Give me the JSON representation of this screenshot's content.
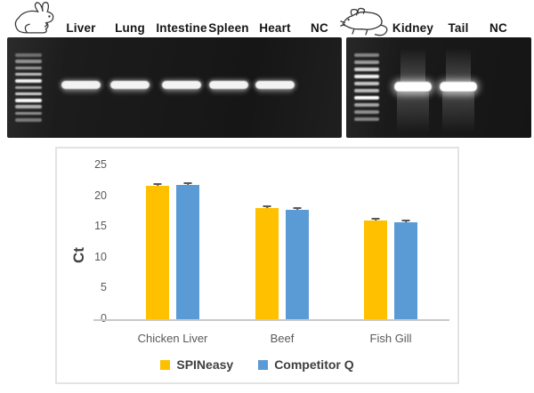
{
  "figure": {
    "gels": [
      {
        "animal": "rabbit",
        "lanes": [
          {
            "label": "Liver",
            "band": true,
            "smear": false
          },
          {
            "label": "Lung",
            "band": true,
            "smear": false
          },
          {
            "label": "Intestine",
            "band": true,
            "smear": false
          },
          {
            "label": "Spleen",
            "band": true,
            "smear": false
          },
          {
            "label": "Heart",
            "band": true,
            "smear": false
          },
          {
            "label": "NC",
            "band": false,
            "smear": false
          }
        ],
        "ladder_intensities": [
          0.35,
          0.5,
          0.55,
          0.72,
          0.95,
          0.6,
          0.8,
          1.0,
          0.65,
          0.5,
          0.4
        ]
      },
      {
        "animal": "rat",
        "lanes": [
          {
            "label": "Kidney",
            "band": true,
            "smear": true
          },
          {
            "label": "Tail",
            "band": true,
            "smear": true
          },
          {
            "label": "NC",
            "band": false,
            "smear": false
          }
        ],
        "ladder_intensities": [
          0.45,
          0.55,
          0.8,
          0.95,
          0.75,
          0.7,
          1.0,
          0.6,
          0.5,
          0.45
        ]
      }
    ],
    "chart_data": {
      "type": "bar",
      "title": "",
      "xlabel": "",
      "ylabel": "Ct",
      "categories": [
        "Chicken Liver",
        "Beef",
        "Fish Gill"
      ],
      "series": [
        {
          "name": "SPINeasy",
          "color": "#FFC000",
          "values": [
            21.7,
            18.0,
            16.0
          ],
          "errors": [
            0.3,
            0.2,
            0.2
          ]
        },
        {
          "name": "Competitor Q",
          "color": "#5B9BD5",
          "values": [
            21.8,
            17.8,
            15.7
          ],
          "errors": [
            0.2,
            0.2,
            0.3
          ]
        }
      ],
      "ylim": [
        0,
        25
      ],
      "yticks": [
        0,
        5,
        10,
        15,
        20,
        25
      ],
      "grid": false,
      "legend_position": "bottom",
      "error_bars": true
    },
    "colors": {
      "spineasy": "#FFC000",
      "competitor_q": "#5B9BD5",
      "axis_text": "#595959",
      "panel_border": "#E3E3E3",
      "gel_background": "#1b1b1b"
    }
  }
}
